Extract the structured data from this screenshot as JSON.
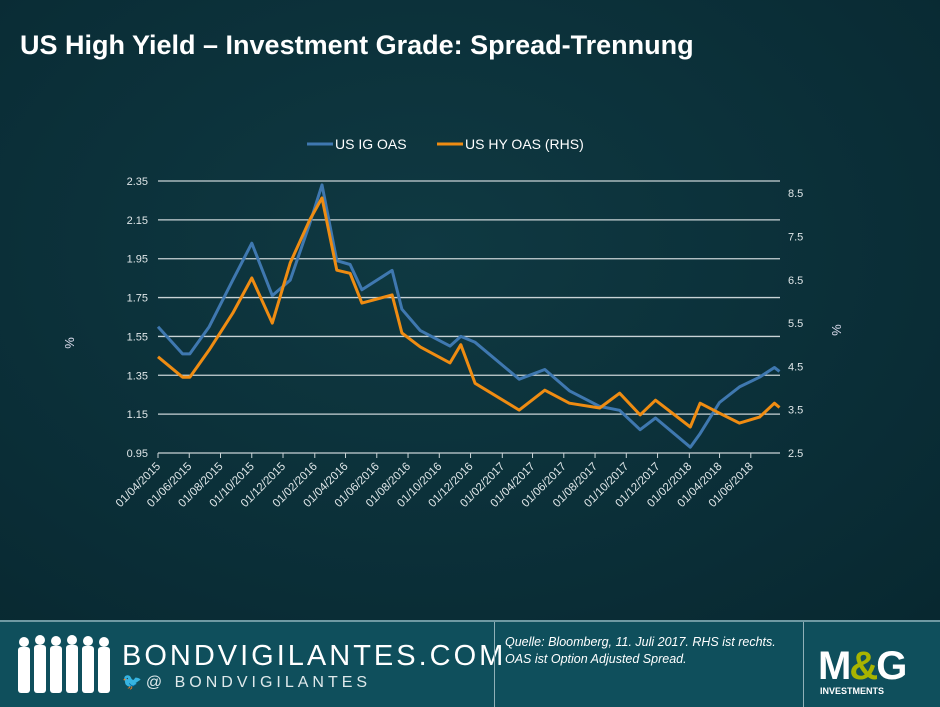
{
  "title": "US High Yield – Investment Grade: Spread-Trennung",
  "chart_data": {
    "type": "line",
    "title": "US High Yield – Investment Grade: Spread-Trennung",
    "ylabel": "%",
    "y2label": "%",
    "ylim": [
      0.95,
      2.35
    ],
    "y2lim": [
      2.5,
      8.78
    ],
    "yticks": [
      "0.95",
      "1.15",
      "1.35",
      "1.55",
      "1.75",
      "1.95",
      "2.15",
      "2.35"
    ],
    "y2ticks": [
      "2.5",
      "3.5",
      "4.5",
      "5.5",
      "6.5",
      "7.5",
      "8.5"
    ],
    "xlim": [
      "2015-04-01",
      "2018-07-28"
    ],
    "xticks": [
      "01/04/2015",
      "01/06/2015",
      "01/08/2015",
      "01/10/2015",
      "01/12/2015",
      "01/02/2016",
      "01/04/2016",
      "01/06/2016",
      "01/08/2016",
      "01/10/2016",
      "01/12/2016",
      "01/02/2017",
      "01/04/2017",
      "01/06/2017",
      "01/08/2017",
      "01/10/2017",
      "01/12/2017",
      "01/02/2018",
      "01/04/2018",
      "01/06/2018"
    ],
    "grid": true,
    "legend_placement": "top",
    "x": [
      "2015-04-01",
      "2015-05-19",
      "2015-06-02",
      "2015-07-10",
      "2015-08-25",
      "2015-10-01",
      "2015-11-10",
      "2015-12-15",
      "2016-01-22",
      "2016-02-15",
      "2016-03-15",
      "2016-04-10",
      "2016-05-03",
      "2016-07-01",
      "2016-07-20",
      "2016-08-25",
      "2016-10-22",
      "2016-11-12",
      "2016-12-10",
      "2017-03-06",
      "2017-04-25",
      "2017-06-12",
      "2017-08-10",
      "2017-09-18",
      "2017-10-28",
      "2017-11-27",
      "2018-02-03",
      "2018-02-22",
      "2018-04-01",
      "2018-05-10",
      "2018-06-18",
      "2018-07-17",
      "2018-07-27"
    ],
    "series": [
      {
        "name": "US IG OAS",
        "axis": "left",
        "color": "#3f78b0",
        "values": [
          1.6,
          1.46,
          1.46,
          1.6,
          1.84,
          2.03,
          1.76,
          1.84,
          2.13,
          2.33,
          1.94,
          1.92,
          1.79,
          1.89,
          1.69,
          1.58,
          1.5,
          1.55,
          1.52,
          1.33,
          1.38,
          1.27,
          1.19,
          1.17,
          1.07,
          1.13,
          0.98,
          1.05,
          1.21,
          1.29,
          1.34,
          1.39,
          1.37
        ]
      },
      {
        "name": "US HY OAS (RHS)",
        "axis": "right",
        "color": "#ef8c12",
        "values": [
          4.72,
          4.25,
          4.25,
          4.88,
          5.73,
          6.54,
          5.5,
          6.89,
          7.88,
          8.39,
          6.72,
          6.65,
          5.96,
          6.15,
          5.27,
          4.95,
          4.58,
          5.0,
          4.11,
          3.49,
          3.95,
          3.65,
          3.54,
          3.88,
          3.38,
          3.72,
          3.1,
          3.65,
          3.42,
          3.19,
          3.33,
          3.65,
          3.55
        ]
      }
    ]
  },
  "footer": {
    "brand": "BONDVIGILANTES.COM",
    "handle": "@ BONDVIGILANTES",
    "source": "Quelle: Bloomberg, 11. Juli 2017. RHS ist rechts. OAS ist Option Adjusted Spread.",
    "logo": "M&G",
    "logo_sub": "INVESTMENTS"
  },
  "colors": {
    "background": "#0b3039",
    "footer": "#0f4f5c",
    "ig": "#3f78b0",
    "hy": "#ef8c12"
  }
}
